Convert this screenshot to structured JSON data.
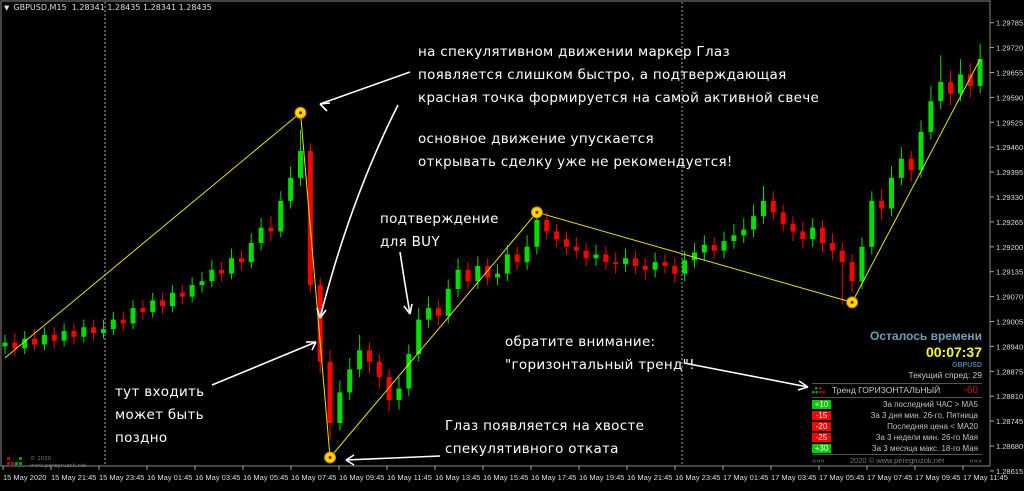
{
  "header": {
    "symbol": "GBPUSD,M15",
    "ohlc": "1.28341 1.28435 1.28341 1.28435"
  },
  "chart_data": {
    "type": "candlestick",
    "symbol": "GBPUSD",
    "timeframe": "M15",
    "ylim": [
      1.286,
      1.2981
    ],
    "y_ticks": [
      1.29785,
      1.2972,
      1.29655,
      1.2959,
      1.29525,
      1.2946,
      1.29395,
      1.2933,
      1.29265,
      1.292,
      1.29135,
      1.2907,
      1.29005,
      1.2894,
      1.28875,
      1.2881,
      1.28745,
      1.2868,
      1.28615
    ],
    "x_ticks": [
      "15 May 2020",
      "15 May 21:45",
      "15 May 23:45",
      "16 May 01:45",
      "16 May 03:45",
      "16 May 05:45",
      "16 May 07:45",
      "16 May 09:45",
      "16 May 11:45",
      "16 May 13:45",
      "16 May 15:45",
      "16 May 17:45",
      "16 May 19:45",
      "16 May 21:45",
      "16 May 23:45",
      "17 May 01:45",
      "17 May 03:45",
      "17 May 05:45",
      "17 May 07:45",
      "17 May 09:45",
      "17 May 11:45"
    ],
    "grid": false,
    "colors": {
      "bull": "#00e000",
      "bear": "#ff0000",
      "zigzag": "#e6e600",
      "marker": "#ffd700",
      "background": "#000000"
    },
    "open": [
      1.2894,
      1.2895,
      1.28935,
      1.2896,
      1.28945,
      1.2897,
      1.28955,
      1.2898,
      1.28965,
      1.2899,
      1.28975,
      1.28985,
      1.2901,
      1.29,
      1.2904,
      1.2903,
      1.2906,
      1.29045,
      1.2908,
      1.2907,
      1.291,
      1.2911,
      1.2914,
      1.2913,
      1.2917,
      1.2916,
      1.2921,
      1.2925,
      1.2924,
      1.2932,
      1.2938,
      1.2945,
      1.291,
      1.289,
      1.2874,
      1.2882,
      1.2888,
      1.2893,
      1.289,
      1.2886,
      1.288,
      1.2883,
      1.2892,
      1.2901,
      1.2904,
      1.2902,
      1.2909,
      1.2914,
      1.2911,
      1.2915,
      1.2912,
      1.2913,
      1.2918,
      1.2916,
      1.292,
      1.2927,
      1.2924,
      1.2922,
      1.292,
      1.2919,
      1.2917,
      1.2918,
      1.2916,
      1.29155,
      1.2917,
      1.2915,
      1.2914,
      1.2916,
      1.2915,
      1.2913,
      1.29165,
      1.29185,
      1.29205,
      1.2919,
      1.29215,
      1.2923,
      1.29245,
      1.2928,
      1.2932,
      1.2929,
      1.2926,
      1.2924,
      1.2922,
      1.2925,
      1.2921,
      1.2919,
      1.2916,
      1.2911,
      1.292,
      1.2932,
      1.293,
      1.2938,
      1.2943,
      1.294,
      1.295,
      1.2958,
      1.2963,
      1.296,
      1.2965,
      1.2962
    ],
    "high": [
      1.2897,
      1.28975,
      1.2898,
      1.28985,
      1.2899,
      1.2899,
      1.29,
      1.29,
      1.2901,
      1.2901,
      1.2901,
      1.2903,
      1.2903,
      1.2906,
      1.2906,
      1.2908,
      1.2908,
      1.291,
      1.291,
      1.2912,
      1.29135,
      1.29165,
      1.2916,
      1.29195,
      1.2919,
      1.29235,
      1.29275,
      1.2928,
      1.29345,
      1.2941,
      1.29505,
      1.2947,
      1.2912,
      1.2893,
      1.2885,
      1.2891,
      1.2897,
      1.2895,
      1.2892,
      1.2888,
      1.2886,
      1.28945,
      1.2904,
      1.2907,
      1.2906,
      1.29115,
      1.2917,
      1.2916,
      1.29175,
      1.2917,
      1.29155,
      1.29205,
      1.292,
      1.2923,
      1.293,
      1.2929,
      1.2926,
      1.2924,
      1.29225,
      1.2921,
      1.29205,
      1.292,
      1.29185,
      1.29195,
      1.2919,
      1.2917,
      1.29185,
      1.2918,
      1.2917,
      1.2919,
      1.2921,
      1.2923,
      1.29225,
      1.2924,
      1.2926,
      1.29275,
      1.2931,
      1.2936,
      1.29345,
      1.2931,
      1.2928,
      1.29265,
      1.29275,
      1.2927,
      1.29235,
      1.2921,
      1.2918,
      1.29225,
      1.29345,
      1.2935,
      1.2941,
      1.2946,
      1.2945,
      1.2953,
      1.2962,
      1.297,
      1.2966,
      1.2969,
      1.2968,
      1.2973
    ],
    "low": [
      1.2892,
      1.28915,
      1.2892,
      1.2893,
      1.2893,
      1.28935,
      1.2894,
      1.28945,
      1.2895,
      1.28955,
      1.2896,
      1.2897,
      1.2898,
      1.28985,
      1.2901,
      1.29015,
      1.29025,
      1.2903,
      1.2905,
      1.29055,
      1.2908,
      1.29095,
      1.2911,
      1.29115,
      1.2914,
      1.29145,
      1.2919,
      1.29215,
      1.29225,
      1.293,
      1.2936,
      1.2908,
      1.2887,
      1.28697,
      1.2872,
      1.288,
      1.2886,
      1.2887,
      1.2883,
      1.2877,
      1.28775,
      1.2881,
      1.289,
      1.2899,
      1.28995,
      1.29,
      1.2907,
      1.2909,
      1.2909,
      1.291,
      1.291,
      1.2911,
      1.2914,
      1.2914,
      1.2918,
      1.2922,
      1.292,
      1.2918,
      1.2917,
      1.2915,
      1.2915,
      1.2914,
      1.2913,
      1.29135,
      1.2913,
      1.29115,
      1.2912,
      1.2913,
      1.29105,
      1.2911,
      1.29145,
      1.29165,
      1.2917,
      1.2917,
      1.29195,
      1.2921,
      1.29225,
      1.2926,
      1.2927,
      1.2924,
      1.29215,
      1.29195,
      1.292,
      1.29185,
      1.29165,
      1.2905,
      1.2908,
      1.2909,
      1.2918,
      1.2927,
      1.2928,
      1.2936,
      1.2937,
      1.2938,
      1.2948,
      1.2956,
      1.2957,
      1.2958,
      1.2959,
      1.296
    ],
    "close": [
      1.2895,
      1.28935,
      1.2896,
      1.28945,
      1.2897,
      1.28955,
      1.2898,
      1.28965,
      1.2899,
      1.28975,
      1.28985,
      1.2901,
      1.29,
      1.2904,
      1.2903,
      1.2906,
      1.29045,
      1.2908,
      1.2907,
      1.291,
      1.2911,
      1.2914,
      1.2913,
      1.2917,
      1.2916,
      1.2921,
      1.2925,
      1.2924,
      1.2932,
      1.2938,
      1.2945,
      1.291,
      1.289,
      1.2874,
      1.2882,
      1.2888,
      1.2893,
      1.289,
      1.2886,
      1.288,
      1.2883,
      1.2892,
      1.2901,
      1.2904,
      1.2902,
      1.2909,
      1.2914,
      1.2911,
      1.2915,
      1.2912,
      1.2913,
      1.2918,
      1.2916,
      1.292,
      1.2927,
      1.2924,
      1.2922,
      1.292,
      1.2919,
      1.2917,
      1.2918,
      1.2916,
      1.29155,
      1.2917,
      1.2915,
      1.2914,
      1.2916,
      1.2915,
      1.2913,
      1.29165,
      1.29185,
      1.29205,
      1.2919,
      1.29215,
      1.2923,
      1.29245,
      1.2928,
      1.2932,
      1.2929,
      1.2926,
      1.2924,
      1.2922,
      1.2925,
      1.2921,
      1.2919,
      1.2916,
      1.2911,
      1.292,
      1.2932,
      1.293,
      1.2938,
      1.2943,
      1.294,
      1.295,
      1.2958,
      1.2963,
      1.296,
      1.2965,
      1.2962,
      1.2969
    ],
    "zigzag": [
      {
        "i": 0,
        "price": 1.2891
      },
      {
        "i": 30,
        "price": 1.2955
      },
      {
        "i": 33,
        "price": 1.2865
      },
      {
        "i": 54,
        "price": 1.2929
      },
      {
        "i": 86,
        "price": 1.29055
      },
      {
        "i": 99,
        "price": 1.2969
      }
    ],
    "eye_markers": [
      {
        "i": 30,
        "price": 1.2955
      },
      {
        "i": 33,
        "price": 1.2865
      },
      {
        "i": 54,
        "price": 1.2929
      },
      {
        "i": 86,
        "price": 1.29055
      }
    ]
  },
  "annotations": {
    "a1": [
      "на спекулятивном движении маркер Глаз",
      "появляется слишком быстро, а подтверждающая",
      "красная точка формируется на самой активной свече"
    ],
    "a2": [
      "основное движение упускается",
      "открывать сделку уже не рекомендуется!"
    ],
    "a3": [
      "подтверждение",
      "для BUY"
    ],
    "a4": [
      "обратите внимание:",
      "\"горизонтальный тренд\"!"
    ],
    "a5": [
      "тут входить",
      "может быть",
      "поздно"
    ],
    "a6": [
      "Глаз появляется на хвосте",
      "спекулятивного отката"
    ]
  },
  "panel": {
    "title": "Осталось времени",
    "time_left": "00:07:37",
    "symbol": "GBPUSD",
    "spread": "Текущий спред: 29",
    "trend_label": "Тренд ГОРИЗОНТАЛЬНЫЙ",
    "trend_value": "-60",
    "rows": [
      {
        "badge": "+10",
        "color": "#00cc00",
        "text": "За последний ЧАС > MA5"
      },
      {
        "badge": "-15",
        "color": "#ff0000",
        "text": "За 3 дня мин. 26-го, Пятница"
      },
      {
        "badge": "-20",
        "color": "#ff0000",
        "text": "Последняя цена < MA20"
      },
      {
        "badge": "-25",
        "color": "#ff0000",
        "text": "За 3 недели мин. 26-го Мая"
      },
      {
        "badge": "+30",
        "color": "#00cc00",
        "text": "За 3 месяца макс. 18-го Мая"
      }
    ],
    "footer_left": "»»»",
    "footer": "2020  ©   www.peregruzok.net",
    "footer_right": "«««"
  },
  "watermark": {
    "line1": "© 2020",
    "line2": "www.peregruzok.net"
  }
}
